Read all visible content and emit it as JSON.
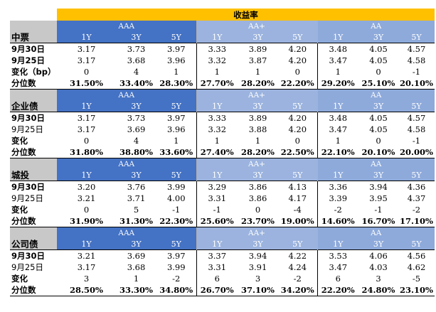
{
  "header": {
    "title": "收益率"
  },
  "groups": [
    "AAA",
    "AA+",
    "AA"
  ],
  "tenors": [
    "1Y",
    "3Y",
    "5Y"
  ],
  "sections": [
    {
      "name": "中票",
      "rows": [
        {
          "label": "9月30日",
          "bold": true,
          "values": [
            "3.17",
            "3.73",
            "3.97",
            "3.33",
            "3.89",
            "4.20",
            "3.48",
            "4.05",
            "4.57"
          ]
        },
        {
          "label": "9月25日",
          "bold": true,
          "values": [
            "3.17",
            "3.68",
            "3.96",
            "3.32",
            "3.87",
            "4.20",
            "3.47",
            "4.05",
            "4.58"
          ]
        },
        {
          "label": "变化（bp）",
          "bold": true,
          "values": [
            "0",
            "4",
            "1",
            "1",
            "1",
            "0",
            "1",
            "0",
            "-1"
          ]
        },
        {
          "label": "分位数",
          "bold": true,
          "values": [
            "31.50%",
            "33.40%",
            "28.30%",
            "27.70%",
            "28.20%",
            "22.20%",
            "29.20%",
            "25.10%",
            "20.10%"
          ]
        }
      ]
    },
    {
      "name": "企业债",
      "rows": [
        {
          "label": "9月30日",
          "bold": true,
          "values": [
            "3.17",
            "3.73",
            "3.97",
            "3.33",
            "3.89",
            "4.20",
            "3.48",
            "4.05",
            "4.57"
          ]
        },
        {
          "label": "9月25日",
          "bold": false,
          "values": [
            "3.17",
            "3.69",
            "3.96",
            "3.32",
            "3.88",
            "4.20",
            "3.47",
            "4.05",
            "4.58"
          ]
        },
        {
          "label": "变化",
          "bold": true,
          "values": [
            "0",
            "4",
            "1",
            "1",
            "1",
            "0",
            "1",
            "0",
            "-1"
          ]
        },
        {
          "label": "分位数",
          "bold": true,
          "values": [
            "31.80%",
            "38.80%",
            "33.60%",
            "27.40%",
            "28.20%",
            "22.50%",
            "22.10%",
            "20.10%",
            "20.00%"
          ]
        }
      ]
    },
    {
      "name": "城投",
      "rows": [
        {
          "label": "9月30日",
          "bold": true,
          "values": [
            "3.20",
            "3.76",
            "3.99",
            "3.29",
            "3.86",
            "4.13",
            "3.36",
            "3.94",
            "4.36"
          ]
        },
        {
          "label": "9月25日",
          "bold": false,
          "values": [
            "3.21",
            "3.71",
            "4.00",
            "3.31",
            "3.86",
            "4.17",
            "3.39",
            "3.95",
            "4.37"
          ]
        },
        {
          "label": "变化",
          "bold": true,
          "values": [
            "0",
            "5",
            "-1",
            "-1",
            "0",
            "-4",
            "-2",
            "-1",
            "-2"
          ]
        },
        {
          "label": "分位数",
          "bold": true,
          "values": [
            "31.90%",
            "31.30%",
            "22.30%",
            "25.60%",
            "23.70%",
            "19.00%",
            "14.60%",
            "16.70%",
            "17.10%"
          ]
        }
      ]
    },
    {
      "name": "公司债",
      "rows": [
        {
          "label": "9月30日",
          "bold": true,
          "values": [
            "3.21",
            "3.69",
            "3.97",
            "3.37",
            "3.94",
            "4.22",
            "3.53",
            "4.06",
            "4.56"
          ]
        },
        {
          "label": "9月25日",
          "bold": false,
          "values": [
            "3.17",
            "3.68",
            "3.99",
            "3.31",
            "3.91",
            "4.24",
            "3.47",
            "4.03",
            "4.62"
          ]
        },
        {
          "label": "变化",
          "bold": true,
          "values": [
            "3",
            "1",
            "-2",
            "6",
            "3",
            "-2",
            "6",
            "3",
            "-5"
          ]
        },
        {
          "label": "分位数",
          "bold": true,
          "values": [
            "28.50%",
            "33.30%",
            "34.80%",
            "26.70%",
            "37.10%",
            "34.20%",
            "22.20%",
            "24.80%",
            "23.10%"
          ]
        }
      ]
    }
  ],
  "colors": {
    "title_bg": "#ffc000",
    "aaa_bg": "#4472c4",
    "aa_plus_bg": "#9bb3de",
    "aa_bg": "#8eaadb",
    "section_bg": "#c8c8c8"
  }
}
